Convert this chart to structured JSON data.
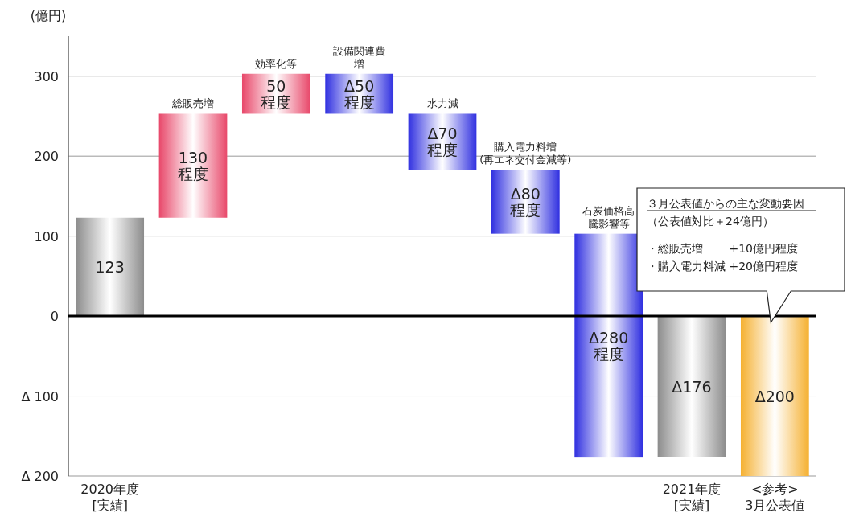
{
  "chart_data": {
    "type": "bar",
    "ylabel": "(億円)",
    "categories": [
      "2020年度\n[実績]",
      "総販売増",
      "効率化等",
      "設備関連費増",
      "水力減",
      "購入電力料増\n(再エネ交付金減等)",
      "石炭価格高騰影響等",
      "2021年度\n[実績]",
      "<参考>\n3月公表値"
    ],
    "values": [
      123,
      130,
      50,
      -50,
      -70,
      -80,
      -280,
      -176,
      -200
    ],
    "base": [
      0,
      123,
      253,
      303,
      253,
      183,
      103,
      0,
      0
    ],
    "colors": [
      "#8c8c8c",
      "#e8486a",
      "#e8486a",
      "#3030e0",
      "#3030e0",
      "#3030e0",
      "#3030e0",
      "#8c8c8c",
      "#f5b030"
    ],
    "value_labels": [
      "123",
      "130\n程度",
      "50\n程度",
      "Δ50\n程度",
      "Δ70\n程度",
      "Δ80\n程度",
      "Δ280\n程度",
      "Δ176",
      "Δ200"
    ],
    "ylim": [
      -200,
      350
    ],
    "yticks": [
      {
        "value": -200,
        "label": "Δ 200"
      },
      {
        "value": -100,
        "label": "Δ 100"
      },
      0,
      100,
      200,
      300
    ],
    "grid": "y",
    "ref_lines": [
      {
        "axis": "y",
        "value": 0,
        "color": "#000000"
      }
    ],
    "annotations": [
      "３月公表値からの主な変動要因",
      "（公表値対比＋24億円）",
      "・総販売増　　 +10億円程度",
      "・購入電力料減 +20億円程度"
    ]
  }
}
